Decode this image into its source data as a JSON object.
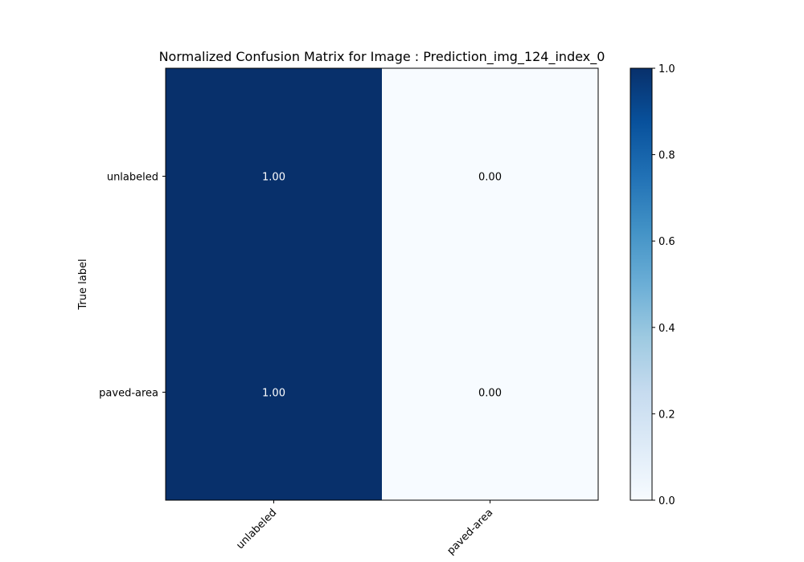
{
  "chart_data": {
    "type": "heatmap",
    "title": "Normalized Confusion Matrix for Image : Prediction_img_124_index_0",
    "ylabel": "True label",
    "xlabel": "",
    "row_labels": [
      "unlabeled",
      "paved-area"
    ],
    "col_labels": [
      "unlabeled",
      "paved-area"
    ],
    "values": [
      [
        1.0,
        0.0
      ],
      [
        1.0,
        0.0
      ]
    ],
    "cell_labels": [
      [
        "1.00",
        "0.00"
      ],
      [
        "1.00",
        "0.00"
      ]
    ],
    "colormap": "Blues",
    "color_low": "#f7fbff",
    "color_high": "#08306b",
    "vmin": 0.0,
    "vmax": 1.0,
    "colorbar_ticks": [
      "0.0",
      "0.2",
      "0.4",
      "0.6",
      "0.8",
      "1.0"
    ],
    "grid": false
  }
}
